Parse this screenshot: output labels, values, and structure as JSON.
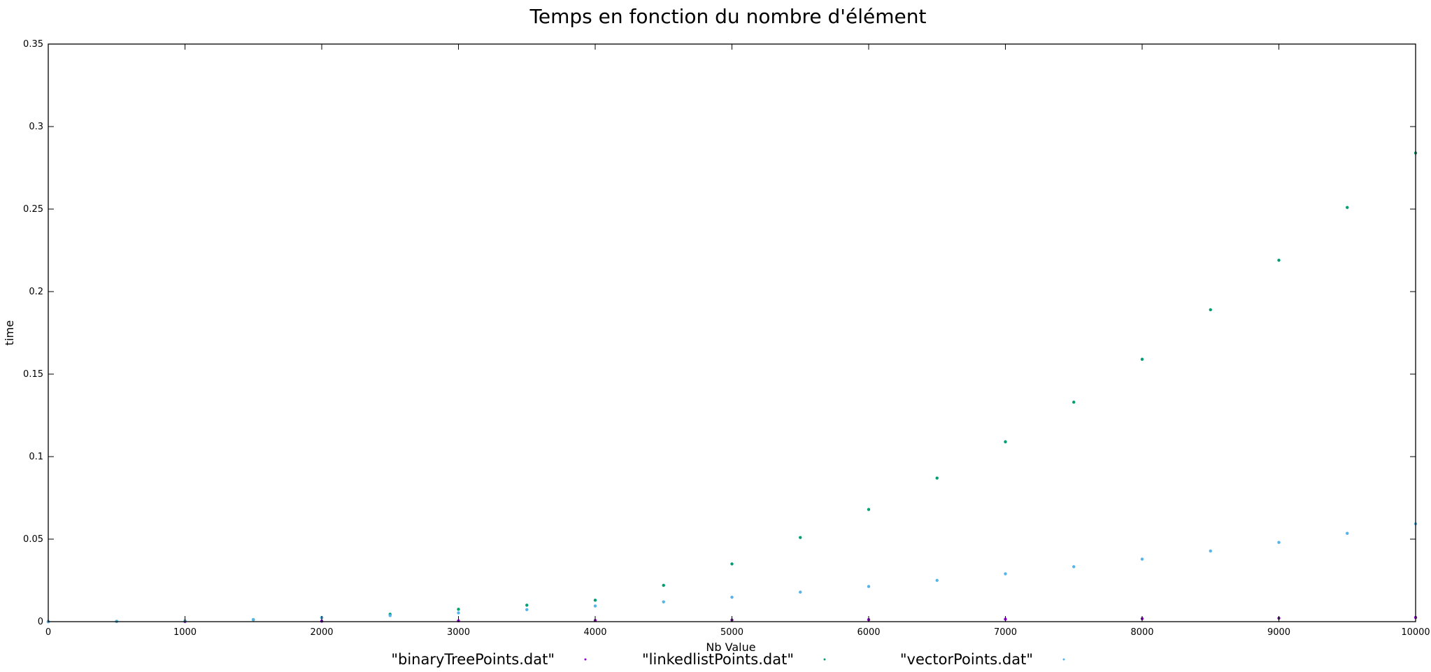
{
  "chart_data": {
    "type": "scatter",
    "title": "Temps en fonction du nombre d'élément",
    "xlabel": "Nb Value",
    "ylabel": "time",
    "xlim": [
      0,
      10000
    ],
    "ylim": [
      0,
      0.35
    ],
    "x_ticks": [
      0,
      1000,
      2000,
      3000,
      4000,
      5000,
      6000,
      7000,
      8000,
      9000,
      10000
    ],
    "x_tick_labels": [
      "0",
      "1000",
      "2000",
      "3000",
      "4000",
      "5000",
      "6000",
      "7000",
      "8000",
      "9000",
      "10000"
    ],
    "y_ticks": [
      0,
      0.05,
      0.1,
      0.15,
      0.2,
      0.25,
      0.3,
      0.35
    ],
    "y_tick_labels": [
      "0",
      "0.05",
      "0.1",
      "0.15",
      "0.2",
      "0.25",
      "0.3",
      "0.35"
    ],
    "grid": false,
    "legend_position": "bottom",
    "series": [
      {
        "name": "\"binaryTreePoints.dat\"",
        "color": "#9400d3",
        "x": [
          0,
          1000,
          2000,
          3000,
          4000,
          5000,
          6000,
          7000,
          8000,
          9000,
          10000
        ],
        "y": [
          0,
          0.0001,
          0.0003,
          0.0005,
          0.0007,
          0.001,
          0.0012,
          0.0015,
          0.0018,
          0.0021,
          0.0025
        ]
      },
      {
        "name": "\"linkedlistPoints.dat\"",
        "color": "#009e73",
        "x": [
          0,
          500,
          1000,
          1500,
          2000,
          2500,
          3000,
          3500,
          4000,
          4500,
          5000,
          5500,
          6000,
          6500,
          7000,
          7500,
          8000,
          8500,
          9000,
          9500,
          10000
        ],
        "y": [
          0,
          0.0002,
          0.0005,
          0.0012,
          0.0025,
          0.0045,
          0.0075,
          0.01,
          0.013,
          0.022,
          0.035,
          0.051,
          0.068,
          0.087,
          0.109,
          0.133,
          0.159,
          0.189,
          0.219,
          0.251,
          0.284
        ]
      },
      {
        "name": "\"vectorPoints.dat\"",
        "color": "#56b4e9",
        "x": [
          0,
          500,
          1000,
          1500,
          2000,
          2500,
          3000,
          3500,
          4000,
          4500,
          5000,
          5500,
          6000,
          6500,
          7000,
          7500,
          8000,
          8500,
          9000,
          9500,
          10000
        ],
        "y": [
          0,
          0.0001,
          0.0005,
          0.0013,
          0.0024,
          0.0037,
          0.0053,
          0.0073,
          0.0095,
          0.012,
          0.0148,
          0.0179,
          0.0213,
          0.025,
          0.029,
          0.0333,
          0.0379,
          0.0428,
          0.048,
          0.0535,
          0.0593
        ]
      }
    ]
  }
}
